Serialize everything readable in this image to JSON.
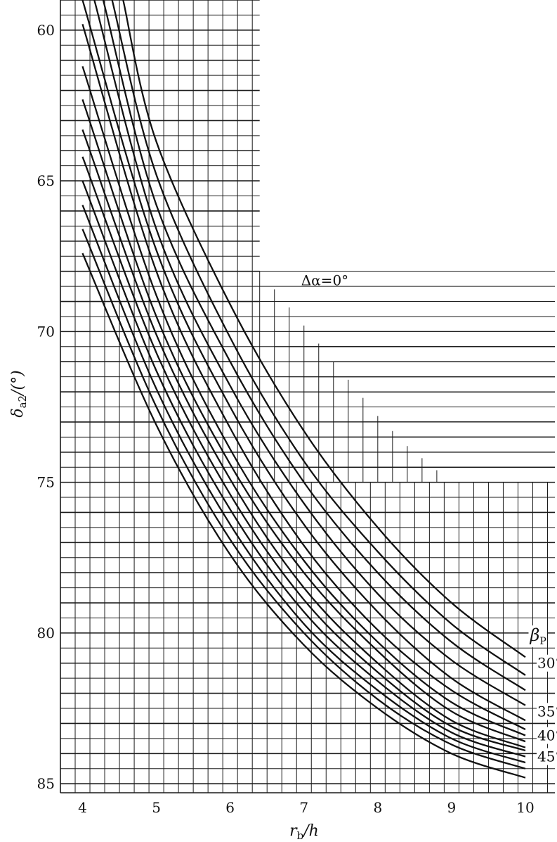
{
  "chart_data": {
    "type": "line",
    "xlabel": "r_b/h",
    "xlabel_parts": {
      "main": "r",
      "sub": "b",
      "rest": "/h"
    },
    "ylabel": "δ_a2/(°)",
    "ylabel_parts": {
      "main": "δ",
      "sub": "a2",
      "rest": "/(°)"
    },
    "xlim": [
      3.7,
      10.4
    ],
    "ylim": [
      59,
      85.3
    ],
    "y_inverted": true,
    "x_ticks": [
      "4",
      "5",
      "6",
      "7",
      "8",
      "9",
      "10"
    ],
    "y_ticks": [
      "60",
      "65",
      "70",
      "75",
      "80",
      "85"
    ],
    "grid": true,
    "grid_region": [
      {
        "x_from": 3.7,
        "x_to": 6.4,
        "y_top": 59
      },
      {
        "x_from": 6.4,
        "x_to": 10.4,
        "y_top": 75
      }
    ],
    "annotations": [
      {
        "text": "Δα=0°",
        "x": 7.0,
        "y": 68.3
      },
      {
        "text": "β_P",
        "x": 10.1,
        "y": 80.1,
        "main": "β",
        "sub": "P"
      },
      {
        "text": "30°",
        "x": 10.2,
        "y": 81.0
      },
      {
        "text": "35°",
        "x": 10.2,
        "y": 82.6
      },
      {
        "text": "40°",
        "x": 10.2,
        "y": 83.4
      },
      {
        "text": "45°",
        "x": 10.2,
        "y": 84.1
      }
    ],
    "series": [
      {
        "x": [
          4.55,
          5,
          6,
          7,
          8,
          9,
          10
        ],
        "y": [
          59,
          63.7,
          69.1,
          73.3,
          76.5,
          79.0,
          80.8
        ]
      },
      {
        "x": [
          4.4,
          5,
          6,
          7,
          8,
          9,
          10
        ],
        "y": [
          59,
          64.8,
          70.2,
          74.3,
          77.3,
          79.7,
          81.4
        ]
      },
      {
        "x": [
          4.28,
          5,
          6,
          7,
          8,
          9,
          10
        ],
        "y": [
          59,
          65.8,
          71.0,
          75.0,
          78.0,
          80.3,
          81.9
        ]
      },
      {
        "x": [
          4.16,
          5,
          6,
          7,
          8,
          9,
          10
        ],
        "y": [
          59,
          66.6,
          71.8,
          75.7,
          78.7,
          80.9,
          82.4
        ]
      },
      {
        "x": [
          4.0,
          5,
          6,
          7,
          8,
          9,
          10
        ],
        "y": [
          59.0,
          67.3,
          72.5,
          76.4,
          79.3,
          81.5,
          82.9
        ]
      },
      {
        "x": [
          4.0,
          5,
          6,
          7,
          8,
          9,
          10
        ],
        "y": [
          59.8,
          68.0,
          73.2,
          77.1,
          79.9,
          81.9,
          83.2
        ]
      },
      {
        "x": [
          4.0,
          5,
          6,
          7,
          8,
          9,
          10
        ],
        "y": [
          61.2,
          68.8,
          73.9,
          77.6,
          80.3,
          82.3,
          83.4
        ]
      },
      {
        "x": [
          4.0,
          5,
          6,
          7,
          8,
          9,
          10
        ],
        "y": [
          62.3,
          69.5,
          74.4,
          78.0,
          80.6,
          82.6,
          83.6
        ]
      },
      {
        "x": [
          4.0,
          5,
          6,
          7,
          8,
          9,
          10
        ],
        "y": [
          63.3,
          70.1,
          74.9,
          78.5,
          81.0,
          82.9,
          83.8
        ]
      },
      {
        "x": [
          4.0,
          5,
          6,
          7,
          8,
          9,
          10
        ],
        "y": [
          64.2,
          70.7,
          75.4,
          78.9,
          81.3,
          83.1,
          83.9
        ]
      },
      {
        "x": [
          4.0,
          5,
          6,
          7,
          8,
          9,
          10
        ],
        "y": [
          65.0,
          71.3,
          75.9,
          79.3,
          81.6,
          83.3,
          84.1
        ]
      },
      {
        "x": [
          4.0,
          5,
          6,
          7,
          8,
          9,
          10
        ],
        "y": [
          65.8,
          71.9,
          76.4,
          79.7,
          81.9,
          83.5,
          84.3
        ]
      },
      {
        "x": [
          4.0,
          5,
          6,
          7,
          8,
          9,
          10
        ],
        "y": [
          66.6,
          72.5,
          76.9,
          80.0,
          82.2,
          83.7,
          84.5
        ]
      },
      {
        "x": [
          4.0,
          5,
          6,
          7,
          8,
          9,
          10
        ],
        "y": [
          67.4,
          73.1,
          77.4,
          80.4,
          82.5,
          84.0,
          84.8
        ]
      }
    ]
  }
}
